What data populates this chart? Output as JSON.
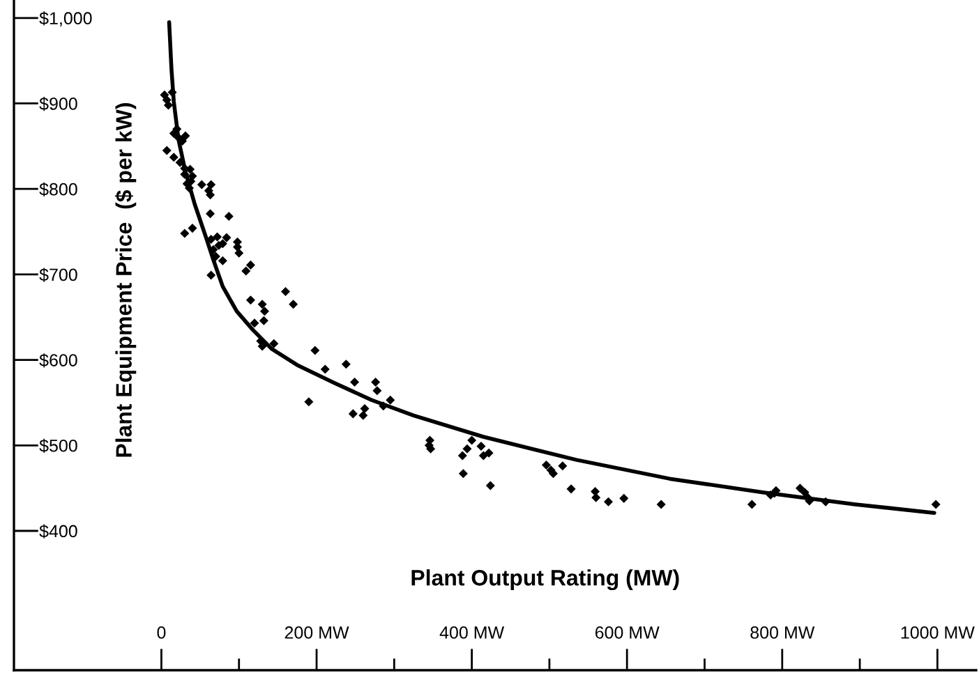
{
  "chart_data": {
    "type": "scatter",
    "xlabel": "Plant Output Rating (MW)",
    "ylabel": "Plant Equipment Price  ($ per kW)",
    "xlim": [
      -190,
      1050
    ],
    "ylim": [
      237,
      1021
    ],
    "xticks": [
      0,
      {
        "value": 100,
        "label": null
      },
      {
        "value": 200,
        "label": "200 MW"
      },
      {
        "value": 300,
        "label": null
      },
      {
        "value": 400,
        "label": "400 MW"
      },
      {
        "value": 500,
        "label": null
      },
      {
        "value": 600,
        "label": "600 MW"
      },
      {
        "value": 700,
        "label": null
      },
      {
        "value": 800,
        "label": "800 MW"
      },
      {
        "value": 900,
        "label": null
      },
      {
        "value": 1000,
        "label": "1000 MW"
      }
    ],
    "yticks": [
      {
        "value": 400,
        "label": "$400"
      },
      {
        "value": 500,
        "label": "$500"
      },
      {
        "value": 600,
        "label": "$600"
      },
      {
        "value": 700,
        "label": "$700"
      },
      {
        "value": 800,
        "label": "$800"
      },
      {
        "value": 900,
        "label": "$900"
      },
      {
        "value": 1000,
        "label": "$1,000"
      }
    ],
    "grid": false,
    "series": [
      {
        "color": "#000000",
        "marker": "diamond",
        "x": [
          4,
          7,
          9,
          14,
          16,
          20,
          22,
          27,
          31,
          7,
          16,
          24,
          30,
          30,
          37,
          40,
          33,
          36,
          38,
          52,
          64,
          63,
          61,
          63,
          87,
          30,
          40,
          64,
          72,
          74,
          67,
          79,
          70,
          79,
          84,
          98,
          100,
          98,
          115,
          109,
          64,
          115,
          130,
          133,
          132,
          160,
          170,
          120,
          128,
          130,
          145,
          198,
          211,
          238,
          249,
          276,
          278,
          295,
          190,
          247,
          260,
          262,
          286,
          346,
          345,
          347,
          388,
          394,
          400,
          412,
          415,
          422,
          389,
          424,
          496,
          502,
          505,
          517,
          528,
          559,
          560,
          576,
          596,
          644,
          761,
          785,
          790,
          792,
          823,
          829,
          832,
          835,
          856,
          998
        ],
        "values": [
          910,
          904,
          898,
          913,
          865,
          870,
          860,
          856,
          862,
          845,
          837,
          831,
          824,
          817,
          823,
          815,
          806,
          801,
          809,
          805,
          805,
          793,
          798,
          771,
          768,
          748,
          754,
          741,
          744,
          734,
          729,
          736,
          721,
          716,
          743,
          738,
          725,
          732,
          711,
          704,
          699,
          670,
          665,
          657,
          646,
          680,
          665,
          643,
          622,
          616,
          619,
          611,
          589,
          595,
          574,
          574,
          564,
          553,
          551,
          537,
          535,
          543,
          546,
          506,
          500,
          496,
          488,
          496,
          506,
          499,
          488,
          491,
          467,
          453,
          477,
          471,
          467,
          476,
          449,
          446,
          439,
          434,
          438,
          431,
          431,
          442,
          444,
          447,
          450,
          445,
          440,
          435,
          434,
          431
        ]
      },
      {
        "type": "line",
        "color": "#000000",
        "marker": "none",
        "line_style": "solid",
        "x": [
          10,
          13,
          16,
          22,
          31,
          43,
          58,
          67,
          79,
          97,
          118,
          142,
          175,
          223,
          271,
          325,
          415,
          535,
          655,
          775,
          894,
          996
        ],
        "values": [
          995,
          940,
          902,
          858,
          820,
          782,
          742,
          717,
          686,
          657,
          635,
          613,
          594,
          573,
          553,
          535,
          510,
          483,
          461,
          445,
          431,
          421
        ]
      }
    ]
  }
}
